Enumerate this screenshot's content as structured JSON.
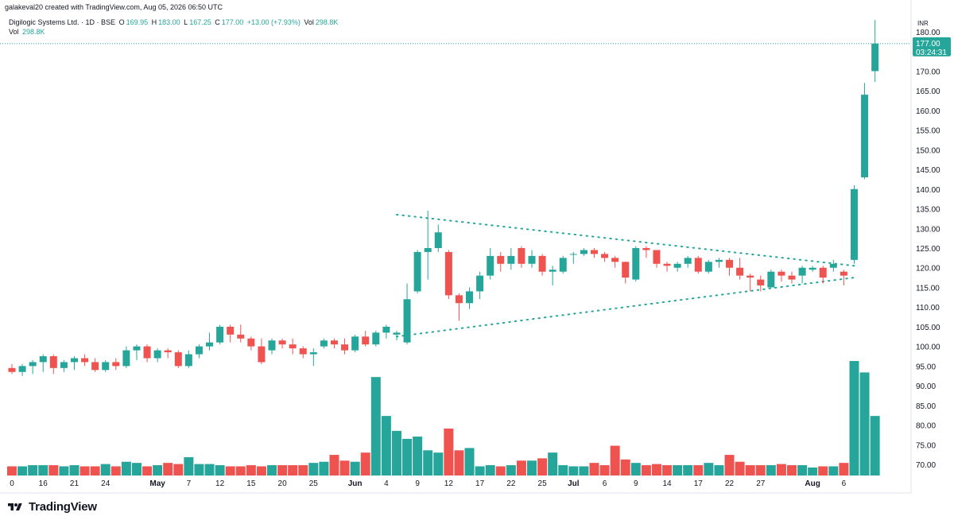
{
  "header": {
    "creator": "galakeval20 created with TradingView.com, Aug 05, 2026 06:50 UTC",
    "symbol": "Digilogic Systems Ltd. · 1D · BSE",
    "o_label": "O",
    "o_value": "169.95",
    "h_label": "H",
    "h_value": "183.00",
    "l_label": "L",
    "l_value": "167.25",
    "c_label": "C",
    "c_value": "177.00",
    "change": "+13.00 (+7.93%)",
    "vol_label": "Vol",
    "vol_value": "298.8K",
    "vol_row_label": "Vol",
    "vol_row_value": "298.8K"
  },
  "price_axis": {
    "currency": "INR",
    "last_price": "177.00",
    "countdown": "03:24:31"
  },
  "colors": {
    "up": "#26a69a",
    "down": "#ef5350",
    "trendline": "#26a69a",
    "axis_text": "#131722"
  },
  "brand": {
    "name": "TradingView",
    "icon": "tradingview-logo-icon"
  },
  "chart_data": {
    "type": "candlestick",
    "ylim": [
      66,
      183
    ],
    "y_ticks": [
      70,
      75,
      80,
      85,
      90,
      95,
      100,
      105,
      110,
      115,
      120,
      125,
      130,
      135,
      140,
      145,
      150,
      155,
      160,
      165,
      170,
      175,
      180
    ],
    "y_tick_labels": [
      "70.00",
      "75.00",
      "80.00",
      "85.00",
      "90.00",
      "95.00",
      "100.00",
      "105.00",
      "110.00",
      "115.00",
      "120.00",
      "125.00",
      "130.00",
      "135.00",
      "140.00",
      "145.00",
      "150.00",
      "155.00",
      "160.00",
      "165.00",
      "170.00",
      "175.00",
      "180.00"
    ],
    "x_ticks": [
      {
        "label": "0",
        "index": 0
      },
      {
        "label": "16",
        "index": 3
      },
      {
        "label": "21",
        "index": 6
      },
      {
        "label": "24",
        "index": 9
      },
      {
        "label": "May",
        "index": 14
      },
      {
        "label": "7",
        "index": 17
      },
      {
        "label": "12",
        "index": 20
      },
      {
        "label": "15",
        "index": 23
      },
      {
        "label": "20",
        "index": 26
      },
      {
        "label": "25",
        "index": 29
      },
      {
        "label": "Jun",
        "index": 33
      },
      {
        "label": "4",
        "index": 36
      },
      {
        "label": "9",
        "index": 39
      },
      {
        "label": "12",
        "index": 42
      },
      {
        "label": "17",
        "index": 45
      },
      {
        "label": "22",
        "index": 48
      },
      {
        "label": "25",
        "index": 51
      },
      {
        "label": "Jul",
        "index": 54
      },
      {
        "label": "6",
        "index": 57
      },
      {
        "label": "9",
        "index": 60
      },
      {
        "label": "14",
        "index": 63
      },
      {
        "label": "17",
        "index": 66
      },
      {
        "label": "22",
        "index": 69
      },
      {
        "label": "27",
        "index": 72
      },
      {
        "label": "Aug",
        "index": 77
      },
      {
        "label": "6",
        "index": 80
      }
    ],
    "candles": [
      [
        94.5,
        93.5,
        95.5,
        93
      ],
      [
        93.5,
        95,
        95.5,
        92.5
      ],
      [
        95,
        96,
        96.5,
        93
      ],
      [
        96,
        97.5,
        98,
        93.5
      ],
      [
        97.5,
        94.5,
        98,
        93
      ],
      [
        94.5,
        96,
        96.5,
        93.5
      ],
      [
        96,
        97,
        97.5,
        94
      ],
      [
        97,
        96,
        98,
        95
      ],
      [
        96,
        94,
        97,
        93.5
      ],
      [
        94,
        96,
        96.5,
        93.5
      ],
      [
        96,
        95,
        97,
        94
      ],
      [
        95,
        99,
        100,
        94.5
      ],
      [
        99,
        100,
        100.5,
        96.5
      ],
      [
        100,
        97,
        100.5,
        96
      ],
      [
        97,
        99,
        99.5,
        96
      ],
      [
        99,
        98.5,
        99.5,
        97
      ],
      [
        98.5,
        95,
        99,
        94.5
      ],
      [
        95,
        98,
        99,
        94.5
      ],
      [
        98,
        100,
        100.5,
        97
      ],
      [
        100,
        101,
        103.5,
        99
      ],
      [
        101,
        105,
        105.5,
        100.5
      ],
      [
        105,
        103,
        105.5,
        101
      ],
      [
        103,
        102,
        105.5,
        101
      ],
      [
        102,
        100,
        102.5,
        99
      ],
      [
        100,
        96,
        102,
        95.5
      ],
      [
        99,
        101.5,
        102,
        98
      ],
      [
        101.5,
        100.5,
        102,
        99.5
      ],
      [
        100.5,
        99.5,
        102,
        98
      ],
      [
        99.5,
        98,
        100,
        97
      ],
      [
        98,
        98.5,
        99.5,
        95
      ],
      [
        100,
        101.5,
        102,
        99.5
      ],
      [
        101.5,
        100.5,
        102,
        99.5
      ],
      [
        100.5,
        99,
        102,
        98
      ],
      [
        99,
        102.5,
        103,
        98.5
      ],
      [
        102.5,
        100.5,
        104,
        100
      ],
      [
        100.5,
        103.5,
        104,
        100
      ],
      [
        103.5,
        105,
        105.5,
        102
      ],
      [
        103,
        103.5,
        104,
        101.5
      ],
      [
        101,
        112,
        116,
        100.5
      ],
      [
        114,
        124,
        124.5,
        113.5
      ],
      [
        124,
        125,
        134.5,
        117
      ],
      [
        125,
        129,
        131,
        124
      ],
      [
        124,
        113,
        124.5,
        112
      ],
      [
        113,
        111,
        113.5,
        106.5
      ],
      [
        111,
        114,
        115,
        109.5
      ],
      [
        114,
        118,
        119,
        112
      ],
      [
        118,
        123,
        125,
        117
      ],
      [
        123,
        121,
        124,
        119
      ],
      [
        121,
        123,
        125,
        119.5
      ],
      [
        125,
        121,
        125.5,
        120
      ],
      [
        121,
        123,
        124.5,
        120
      ],
      [
        123,
        119,
        123.5,
        118
      ],
      [
        119,
        119.5,
        120.5,
        115.5
      ],
      [
        119,
        122.5,
        123,
        118.5
      ],
      [
        123.5,
        123.5,
        124,
        121
      ],
      [
        123.5,
        124.5,
        125,
        123
      ],
      [
        124.5,
        123.5,
        125,
        122.5
      ],
      [
        123.5,
        122.5,
        124,
        121.5
      ],
      [
        122.5,
        121.5,
        123,
        120
      ],
      [
        121.5,
        117.5,
        121.5,
        116
      ],
      [
        117,
        125,
        125.5,
        116.5
      ],
      [
        125,
        124.5,
        125.5,
        122.5
      ],
      [
        124.5,
        121,
        124.5,
        120
      ],
      [
        121,
        120.5,
        121.5,
        119
      ],
      [
        120,
        121,
        121.5,
        119
      ],
      [
        121,
        122.5,
        123,
        120
      ],
      [
        122.5,
        119,
        123,
        118.5
      ],
      [
        119,
        121.5,
        122,
        118.5
      ],
      [
        121.5,
        122,
        122.5,
        120
      ],
      [
        122,
        120,
        122.5,
        118
      ],
      [
        120,
        118,
        122.5,
        117
      ],
      [
        118,
        117.5,
        118.5,
        114
      ],
      [
        117,
        115.5,
        118,
        114
      ],
      [
        115,
        119,
        119.5,
        115
      ],
      [
        119,
        118,
        119.5,
        116.5
      ],
      [
        118,
        117,
        119,
        116
      ],
      [
        118,
        120,
        120.5,
        116
      ],
      [
        119.5,
        120,
        120.5,
        119
      ],
      [
        120,
        117.5,
        120.5,
        116
      ],
      [
        120,
        121,
        122,
        119
      ],
      [
        119,
        118,
        119.5,
        115.5
      ],
      [
        122,
        140,
        141,
        121
      ],
      [
        143,
        164,
        167,
        142.5
      ],
      [
        170,
        177,
        183,
        167.25
      ]
    ],
    "volume_levels": [
      0.08,
      0.08,
      0.09,
      0.09,
      0.09,
      0.08,
      0.09,
      0.08,
      0.08,
      0.1,
      0.08,
      0.12,
      0.11,
      0.08,
      0.09,
      0.11,
      0.1,
      0.16,
      0.1,
      0.1,
      0.09,
      0.08,
      0.08,
      0.09,
      0.08,
      0.09,
      0.09,
      0.09,
      0.09,
      0.11,
      0.12,
      0.18,
      0.13,
      0.12,
      0.2,
      0.86,
      0.52,
      0.39,
      0.32,
      0.34,
      0.22,
      0.2,
      0.41,
      0.22,
      0.24,
      0.08,
      0.09,
      0.08,
      0.09,
      0.13,
      0.13,
      0.15,
      0.2,
      0.09,
      0.08,
      0.08,
      0.11,
      0.09,
      0.26,
      0.14,
      0.11,
      0.09,
      0.1,
      0.09,
      0.09,
      0.09,
      0.09,
      0.11,
      0.09,
      0.18,
      0.12,
      0.09,
      0.09,
      0.09,
      0.1,
      0.09,
      0.09,
      0.07,
      0.08,
      0.08,
      0.11,
      1.0,
      0.9,
      0.52
    ],
    "trendlines": [
      {
        "name": "resistance",
        "from": {
          "index": 37,
          "price": 133.5
        },
        "to": {
          "index": 81,
          "price": 120.5
        }
      },
      {
        "name": "support",
        "from": {
          "index": 37,
          "price": 102.5
        },
        "to": {
          "index": 81,
          "price": 117.5
        }
      }
    ],
    "last_price_line": 177
  }
}
